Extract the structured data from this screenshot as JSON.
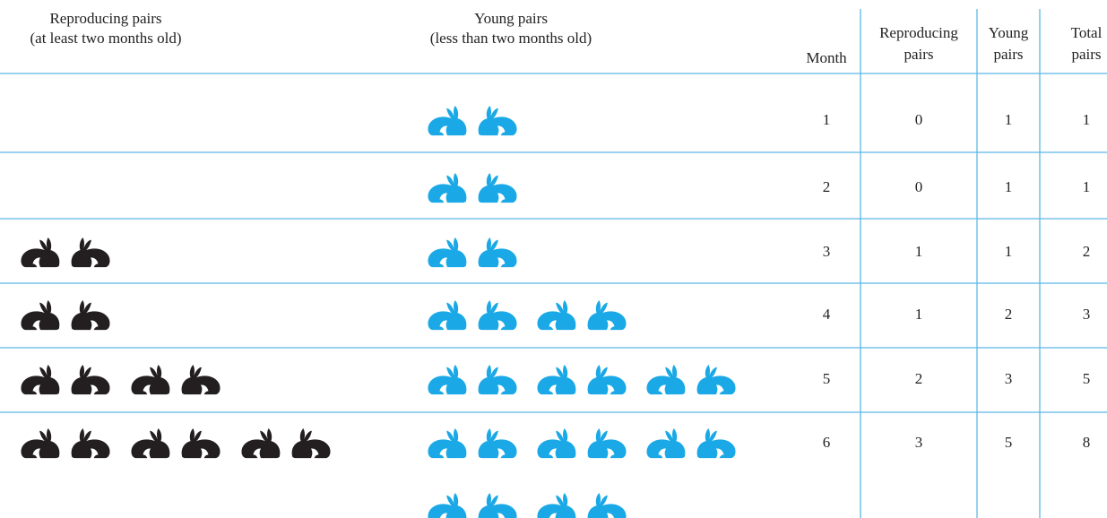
{
  "headers": {
    "reproducing": [
      "Reproducing pairs",
      "(at least two months old)"
    ],
    "young": [
      "Young pairs",
      "(less than two months old)"
    ]
  },
  "table": {
    "columns": [
      [
        "Month"
      ],
      [
        "Reproducing",
        "pairs"
      ],
      [
        "Young",
        "pairs"
      ],
      [
        "Total",
        "pairs"
      ]
    ],
    "rows": [
      [
        1,
        0,
        1,
        1
      ],
      [
        2,
        0,
        1,
        1
      ],
      [
        3,
        1,
        1,
        2
      ],
      [
        4,
        1,
        2,
        3
      ],
      [
        5,
        2,
        3,
        5
      ],
      [
        6,
        3,
        5,
        8
      ]
    ]
  }
}
